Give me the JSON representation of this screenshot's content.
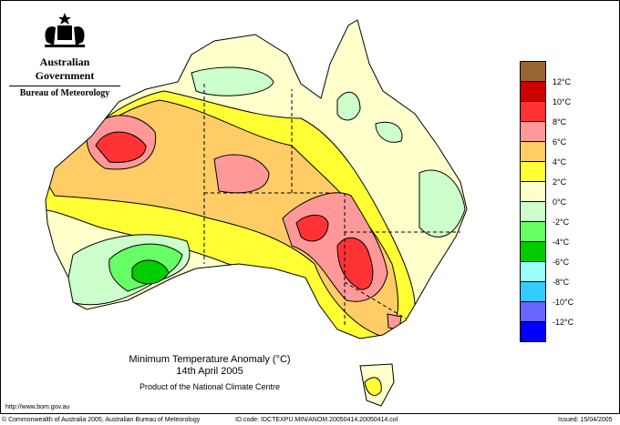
{
  "header": {
    "government": "Australian Government",
    "bureau": "Bureau of Meteorology",
    "crest": "Commonwealth Coat of Arms"
  },
  "title": {
    "line1": "Minimum Temperature Anomaly (°C)",
    "line2": "14th April 2005",
    "credit": "Product of the National Climate Centre"
  },
  "legend": {
    "colors": [
      "#996633",
      "#cc0000",
      "#ff3333",
      "#ff9999",
      "#ffcc66",
      "#ffff33",
      "#ffffcc",
      "#ccffcc",
      "#66ff66",
      "#00cc00",
      "#99ffff",
      "#33ccff",
      "#6666ff",
      "#0000ff"
    ],
    "labels": [
      "12°C",
      "10°C",
      "8°C",
      "6°C",
      "4°C",
      "2°C",
      "0°C",
      "-2°C",
      "-4°C",
      "-6°C",
      "-8°C",
      "-10°C",
      "-12°C"
    ]
  },
  "footer": {
    "url": "http://www.bom.gov.au",
    "copyright": "© Commonwealth of Australia 2005, Australian Bureau of Meteorology",
    "id_code": "ID code: IDCTEXPU.MIN/ANOM.20050414.20050414.col",
    "issued": "Issued: 15/04/2005"
  }
}
